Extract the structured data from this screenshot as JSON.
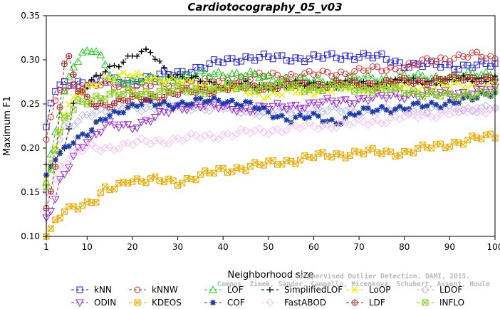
{
  "chart_data": {
    "type": "line",
    "title": "Cardiotocography_05_v03",
    "xlabel": "Neighborhood size",
    "ylabel": "Maximum F1",
    "xlim": [
      1,
      100
    ],
    "ylim": [
      0.1,
      0.35
    ],
    "xticks": [
      1,
      10,
      20,
      30,
      40,
      50,
      60,
      70,
      80,
      90,
      100
    ],
    "yticks": [
      0.1,
      0.15,
      0.2,
      0.25,
      0.3,
      0.35
    ],
    "ytick_labels": [
      "0.10",
      "0.15",
      "0.20",
      "0.25",
      "0.30",
      "0.35"
    ],
    "legend_position": "bottom",
    "series": [
      {
        "name": "kNN",
        "color": "#2020e0",
        "marker": "square",
        "knots": [
          [
            1,
            0.22
          ],
          [
            2,
            0.25
          ],
          [
            3,
            0.265
          ],
          [
            5,
            0.272
          ],
          [
            8,
            0.275
          ],
          [
            12,
            0.275
          ],
          [
            20,
            0.276
          ],
          [
            30,
            0.285
          ],
          [
            40,
            0.298
          ],
          [
            45,
            0.303
          ],
          [
            50,
            0.302
          ],
          [
            60,
            0.302
          ],
          [
            70,
            0.305
          ],
          [
            75,
            0.302
          ],
          [
            80,
            0.295
          ],
          [
            90,
            0.293
          ],
          [
            100,
            0.294
          ]
        ]
      },
      {
        "name": "kNNW",
        "color": "#e03030",
        "marker": "circle",
        "knots": [
          [
            1,
            0.21
          ],
          [
            2,
            0.235
          ],
          [
            3,
            0.25
          ],
          [
            4,
            0.265
          ],
          [
            6,
            0.272
          ],
          [
            10,
            0.27
          ],
          [
            15,
            0.272
          ],
          [
            20,
            0.27
          ],
          [
            30,
            0.272
          ],
          [
            40,
            0.277
          ],
          [
            50,
            0.282
          ],
          [
            60,
            0.283
          ],
          [
            70,
            0.287
          ],
          [
            80,
            0.292
          ],
          [
            90,
            0.303
          ],
          [
            95,
            0.305
          ],
          [
            100,
            0.301
          ]
        ]
      },
      {
        "name": "LOF",
        "color": "#22cc22",
        "marker": "triangle",
        "knots": [
          [
            1,
            0.16
          ],
          [
            2,
            0.19
          ],
          [
            3,
            0.22
          ],
          [
            5,
            0.265
          ],
          [
            7,
            0.295
          ],
          [
            9,
            0.305
          ],
          [
            11,
            0.31
          ],
          [
            12,
            0.308
          ],
          [
            14,
            0.295
          ],
          [
            16,
            0.278
          ],
          [
            20,
            0.275
          ],
          [
            30,
            0.28
          ],
          [
            40,
            0.285
          ],
          [
            50,
            0.28
          ],
          [
            60,
            0.275
          ],
          [
            70,
            0.278
          ],
          [
            80,
            0.28
          ],
          [
            90,
            0.28
          ],
          [
            100,
            0.285
          ]
        ]
      },
      {
        "name": "SimplifiedLOF",
        "color": "#000000",
        "marker": "plus",
        "knots": [
          [
            1,
            0.18
          ],
          [
            3,
            0.19
          ],
          [
            5,
            0.2
          ],
          [
            7,
            0.25
          ],
          [
            10,
            0.27
          ],
          [
            14,
            0.29
          ],
          [
            18,
            0.298
          ],
          [
            21,
            0.305
          ],
          [
            24,
            0.31
          ],
          [
            26,
            0.298
          ],
          [
            28,
            0.285
          ],
          [
            30,
            0.28
          ],
          [
            40,
            0.272
          ],
          [
            50,
            0.27
          ],
          [
            60,
            0.272
          ],
          [
            70,
            0.272
          ],
          [
            80,
            0.275
          ],
          [
            90,
            0.276
          ],
          [
            100,
            0.28
          ]
        ]
      },
      {
        "name": "LoOP",
        "color": "#eeee00",
        "marker": "x",
        "knots": [
          [
            1,
            0.17
          ],
          [
            3,
            0.2
          ],
          [
            5,
            0.24
          ],
          [
            8,
            0.26
          ],
          [
            12,
            0.275
          ],
          [
            15,
            0.28
          ],
          [
            20,
            0.282
          ],
          [
            25,
            0.28
          ],
          [
            30,
            0.275
          ],
          [
            40,
            0.268
          ],
          [
            50,
            0.26
          ],
          [
            60,
            0.265
          ],
          [
            70,
            0.268
          ],
          [
            80,
            0.268
          ],
          [
            90,
            0.27
          ],
          [
            100,
            0.272
          ]
        ]
      },
      {
        "name": "LDOF",
        "color": "#b8b8ee",
        "marker": "diamond",
        "knots": [
          [
            1,
            0.15
          ],
          [
            2,
            0.18
          ],
          [
            3,
            0.2
          ],
          [
            5,
            0.22
          ],
          [
            8,
            0.23
          ],
          [
            10,
            0.24
          ],
          [
            15,
            0.245
          ],
          [
            20,
            0.246
          ],
          [
            30,
            0.248
          ],
          [
            40,
            0.245
          ],
          [
            50,
            0.24
          ],
          [
            60,
            0.243
          ],
          [
            70,
            0.242
          ],
          [
            80,
            0.243
          ],
          [
            90,
            0.244
          ],
          [
            100,
            0.245
          ]
        ]
      },
      {
        "name": "ODIN",
        "color": "#9922dd",
        "marker": "triangle-down",
        "knots": [
          [
            1,
            0.12
          ],
          [
            2,
            0.13
          ],
          [
            3,
            0.14
          ],
          [
            4,
            0.16
          ],
          [
            6,
            0.18
          ],
          [
            8,
            0.2
          ],
          [
            10,
            0.21
          ],
          [
            12,
            0.215
          ],
          [
            14,
            0.225
          ],
          [
            20,
            0.225
          ],
          [
            25,
            0.235
          ],
          [
            30,
            0.245
          ],
          [
            35,
            0.25
          ],
          [
            40,
            0.245
          ],
          [
            50,
            0.245
          ],
          [
            60,
            0.25
          ],
          [
            70,
            0.255
          ],
          [
            80,
            0.26
          ],
          [
            90,
            0.262
          ],
          [
            100,
            0.265
          ]
        ]
      },
      {
        "name": "KDEOS",
        "color": "#eeaa00",
        "marker": "square-x",
        "knots": [
          [
            1,
            0.1
          ],
          [
            2,
            0.105
          ],
          [
            3,
            0.115
          ],
          [
            5,
            0.13
          ],
          [
            7,
            0.135
          ],
          [
            10,
            0.137
          ],
          [
            12,
            0.14
          ],
          [
            14,
            0.152
          ],
          [
            16,
            0.155
          ],
          [
            19,
            0.165
          ],
          [
            22,
            0.163
          ],
          [
            26,
            0.163
          ],
          [
            30,
            0.162
          ],
          [
            40,
            0.175
          ],
          [
            50,
            0.182
          ],
          [
            60,
            0.19
          ],
          [
            70,
            0.195
          ],
          [
            80,
            0.195
          ],
          [
            90,
            0.205
          ],
          [
            100,
            0.214
          ]
        ]
      },
      {
        "name": "COF",
        "color": "#1a3aaa",
        "marker": "asterisk",
        "knots": [
          [
            1,
            0.165
          ],
          [
            3,
            0.19
          ],
          [
            5,
            0.2
          ],
          [
            7,
            0.21
          ],
          [
            10,
            0.215
          ],
          [
            14,
            0.235
          ],
          [
            18,
            0.245
          ],
          [
            22,
            0.25
          ],
          [
            30,
            0.25
          ],
          [
            40,
            0.255
          ],
          [
            45,
            0.25
          ],
          [
            50,
            0.24
          ],
          [
            55,
            0.233
          ],
          [
            60,
            0.235
          ],
          [
            65,
            0.23
          ],
          [
            70,
            0.24
          ],
          [
            75,
            0.245
          ],
          [
            80,
            0.245
          ],
          [
            90,
            0.252
          ],
          [
            95,
            0.255
          ],
          [
            100,
            0.265
          ]
        ]
      },
      {
        "name": "FastABOD",
        "color": "#f5c0f5",
        "marker": "diamond",
        "knots": [
          [
            1,
            0.13
          ],
          [
            2,
            0.15
          ],
          [
            4,
            0.18
          ],
          [
            6,
            0.19
          ],
          [
            10,
            0.2
          ],
          [
            14,
            0.2
          ],
          [
            20,
            0.205
          ],
          [
            30,
            0.21
          ],
          [
            40,
            0.215
          ],
          [
            50,
            0.22
          ],
          [
            60,
            0.225
          ],
          [
            70,
            0.228
          ],
          [
            80,
            0.235
          ],
          [
            90,
            0.24
          ],
          [
            100,
            0.245
          ]
        ]
      },
      {
        "name": "LDF",
        "color": "#aa2222",
        "marker": "circle-plus",
        "knots": [
          [
            1,
            0.135
          ],
          [
            2,
            0.15
          ],
          [
            3,
            0.18
          ],
          [
            4,
            0.25
          ],
          [
            5,
            0.295
          ],
          [
            6,
            0.3
          ],
          [
            8,
            0.265
          ],
          [
            10,
            0.255
          ],
          [
            12,
            0.25
          ],
          [
            14,
            0.25
          ],
          [
            20,
            0.255
          ],
          [
            30,
            0.262
          ],
          [
            40,
            0.268
          ],
          [
            50,
            0.27
          ],
          [
            60,
            0.272
          ],
          [
            70,
            0.273
          ],
          [
            80,
            0.275
          ],
          [
            90,
            0.278
          ],
          [
            100,
            0.28
          ]
        ]
      },
      {
        "name": "INFLO",
        "color": "#88cc22",
        "marker": "square-x",
        "knots": [
          [
            1,
            0.155
          ],
          [
            3,
            0.2
          ],
          [
            5,
            0.23
          ],
          [
            8,
            0.25
          ],
          [
            12,
            0.258
          ],
          [
            20,
            0.262
          ],
          [
            30,
            0.265
          ],
          [
            40,
            0.268
          ],
          [
            50,
            0.27
          ],
          [
            60,
            0.268
          ],
          [
            70,
            0.268
          ],
          [
            80,
            0.265
          ],
          [
            85,
            0.262
          ],
          [
            90,
            0.258
          ],
          [
            95,
            0.262
          ],
          [
            100,
            0.262
          ]
        ]
      }
    ]
  },
  "watermark": {
    "line1": "Unsupervised Outlier Detection. DAMI, 2015.",
    "line2": "Campos, Zimek, Sander, Campello, Micenkova, Schubert, Assent, Houle"
  }
}
